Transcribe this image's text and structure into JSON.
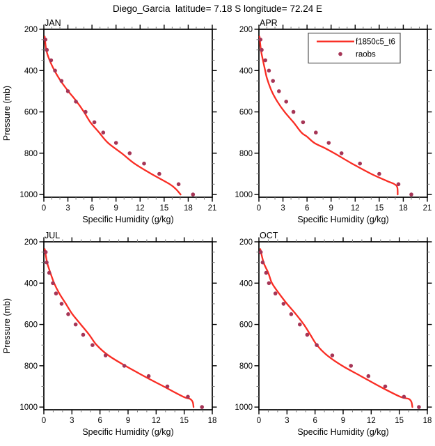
{
  "title": "Diego_Garcia  latitude= 7.18 S longitude= 72.24 E",
  "colors": {
    "model_line": "#f92c23",
    "raobs_dot": "#a63556",
    "frame": "#000000",
    "minor_tick": "#777777",
    "legend_border": "#555555"
  },
  "legend": {
    "line_label": "f1850c5_t6",
    "dot_label": "raobs"
  },
  "axes": {
    "xlabel": "Specific Humidity (g/kg)",
    "ylabel": "Pressure (mb)",
    "yticks": [
      200,
      400,
      600,
      800,
      1000
    ],
    "ylim": [
      200,
      1013
    ],
    "y_minor_step": 50,
    "x_minor_step": 1,
    "grid": false
  },
  "chart_data": [
    {
      "type": "line+scatter",
      "panel": "JAN",
      "xlim": [
        0,
        21
      ],
      "xticks": [
        0,
        3,
        6,
        9,
        12,
        15,
        18,
        21
      ],
      "show_legend": false,
      "raobs": {
        "pressure": [
          250,
          300,
          350,
          400,
          450,
          500,
          550,
          600,
          650,
          700,
          750,
          800,
          850,
          900,
          950,
          1000
        ],
        "q": [
          0.2,
          0.37,
          0.9,
          1.4,
          2.2,
          3.0,
          4.0,
          5.2,
          6.3,
          7.4,
          9.0,
          10.7,
          12.5,
          14.4,
          16.8,
          18.6
        ]
      },
      "model": {
        "pressure": [
          235,
          300,
          350,
          400,
          450,
          500,
          550,
          600,
          650,
          700,
          750,
          800,
          850,
          900,
          950,
          975,
          1000
        ],
        "q": [
          0.1,
          0.3,
          0.72,
          1.33,
          2.1,
          3.05,
          4.1,
          5.0,
          5.8,
          6.9,
          8.0,
          9.7,
          11.3,
          13.4,
          15.7,
          16.5,
          17.05
        ]
      }
    },
    {
      "type": "line+scatter",
      "panel": "APR",
      "xlim": [
        0,
        21
      ],
      "xticks": [
        0,
        3,
        6,
        9,
        12,
        15,
        18,
        21
      ],
      "show_legend": true,
      "raobs": {
        "pressure": [
          250,
          300,
          350,
          400,
          450,
          500,
          550,
          600,
          650,
          700,
          750,
          800,
          850,
          900,
          950,
          1000
        ],
        "q": [
          0.2,
          0.35,
          0.8,
          1.25,
          1.75,
          2.5,
          3.4,
          4.3,
          5.5,
          7.1,
          8.7,
          10.3,
          12.6,
          15.0,
          17.4,
          19.0
        ]
      },
      "model": {
        "pressure": [
          235,
          300,
          350,
          400,
          440,
          500,
          550,
          600,
          650,
          700,
          720,
          750,
          775,
          800,
          850,
          900,
          935,
          950,
          965,
          1000
        ],
        "q": [
          0.08,
          0.25,
          0.5,
          0.78,
          1.02,
          1.6,
          2.3,
          3.2,
          4.3,
          5.3,
          6.0,
          6.9,
          8.2,
          9.4,
          11.6,
          14.0,
          16.0,
          16.9,
          17.25,
          17.3
        ]
      }
    },
    {
      "type": "line+scatter",
      "panel": "JUL",
      "xlim": [
        0,
        18
      ],
      "xticks": [
        0,
        3,
        6,
        9,
        12,
        15,
        18
      ],
      "show_legend": false,
      "raobs": {
        "pressure": [
          250,
          300,
          350,
          400,
          450,
          500,
          550,
          600,
          650,
          700,
          750,
          800,
          850,
          900,
          950,
          1000
        ],
        "q": [
          0.2,
          0.3,
          0.57,
          0.97,
          1.3,
          1.9,
          2.6,
          3.4,
          4.2,
          5.2,
          6.6,
          8.6,
          11.2,
          13.2,
          15.4,
          16.9
        ]
      },
      "model": {
        "pressure": [
          235,
          300,
          350,
          400,
          450,
          500,
          550,
          600,
          650,
          700,
          750,
          800,
          850,
          900,
          950,
          960,
          975,
          1000
        ],
        "q": [
          0.1,
          0.35,
          0.7,
          1.1,
          1.65,
          2.35,
          3.05,
          3.95,
          4.85,
          5.65,
          6.9,
          8.7,
          10.7,
          12.8,
          14.9,
          15.6,
          15.9,
          16.0
        ]
      }
    },
    {
      "type": "line+scatter",
      "panel": "OCT",
      "xlim": [
        0,
        18
      ],
      "xticks": [
        0,
        3,
        6,
        9,
        12,
        15,
        18
      ],
      "show_legend": false,
      "raobs": {
        "pressure": [
          250,
          300,
          350,
          400,
          450,
          500,
          550,
          600,
          650,
          700,
          750,
          800,
          850,
          900,
          950,
          1000
        ],
        "q": [
          0.2,
          0.4,
          0.77,
          1.07,
          1.76,
          2.63,
          3.45,
          4.37,
          5.16,
          6.18,
          7.84,
          9.83,
          11.7,
          13.5,
          15.5,
          17.1
        ]
      },
      "model": {
        "pressure": [
          235,
          300,
          350,
          400,
          450,
          500,
          550,
          600,
          650,
          700,
          750,
          800,
          850,
          900,
          950,
          960,
          975,
          1000
        ],
        "q": [
          0.15,
          0.5,
          1.0,
          1.4,
          2.15,
          3.0,
          3.95,
          4.8,
          5.5,
          6.2,
          7.3,
          8.9,
          10.9,
          12.9,
          15.1,
          16.0,
          16.3,
          16.4
        ]
      }
    }
  ]
}
